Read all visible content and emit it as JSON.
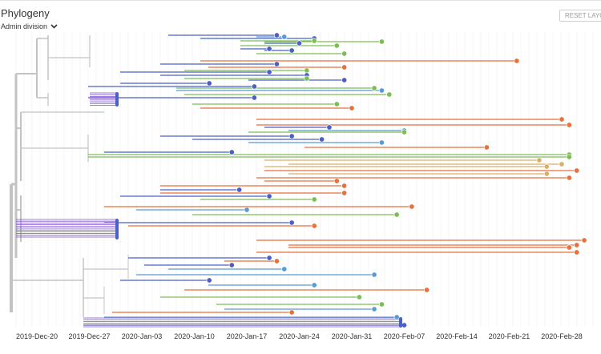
{
  "panel": {
    "title": "Phylogeny",
    "color_by": "Admin division",
    "reset_button": "RESET LAYOUT"
  },
  "colors": {
    "stem": "#c3c3c3",
    "grid": "#ececec",
    "purple": "#7d55c7",
    "blue": "#4a5fc7",
    "lightblue": "#5b9bd5",
    "green": "#7dbd55",
    "orange": "#e8703a",
    "tan": "#dcae6b"
  },
  "icons": {
    "dropdown": "chevron-down-icon"
  },
  "chart_data": {
    "type": "tree",
    "title": "",
    "xlabel": "",
    "ylabel": "",
    "grid": true,
    "x_ticks": [
      "2019-Dec-20",
      "2019-Dec-27",
      "2020-Jan-03",
      "2020-Jan-10",
      "2020-Jan-17",
      "2020-Jan-24",
      "2020-Jan-31",
      "2020-Feb-07",
      "2020-Feb-14",
      "2020-Feb-21",
      "2020-Feb-28"
    ],
    "tips": [
      {
        "date": "2020-Jan-21",
        "color": "blue"
      },
      {
        "date": "2020-Jan-22",
        "color": "lightblue"
      },
      {
        "date": "2020-Jan-26",
        "color": "blue"
      },
      {
        "date": "2020-Jan-26",
        "color": "green"
      },
      {
        "date": "2020-Feb-04",
        "color": "green"
      },
      {
        "date": "2020-Jan-24",
        "color": "blue"
      },
      {
        "date": "2020-Jan-29",
        "color": "green"
      },
      {
        "date": "2020-Jan-20",
        "color": "blue"
      },
      {
        "date": "2020-Jan-23",
        "color": "blue"
      },
      {
        "date": "2020-Jan-30",
        "color": "green"
      },
      {
        "date": "2020-Feb-22",
        "color": "orange"
      },
      {
        "date": "2020-Jan-21",
        "color": "blue"
      },
      {
        "date": "2020-Jan-30",
        "color": "orange"
      },
      {
        "date": "2020-Jan-25",
        "color": "green"
      },
      {
        "date": "2020-Jan-20",
        "color": "blue"
      },
      {
        "date": "2020-Jan-25",
        "color": "blue"
      },
      {
        "date": "2020-Jan-25",
        "color": "green"
      },
      {
        "date": "2020-Jan-30",
        "color": "blue"
      },
      {
        "date": "2020-Jan-12",
        "color": "blue"
      },
      {
        "date": "2020-Jan-18",
        "color": "blue"
      },
      {
        "date": "2020-Feb-03",
        "color": "green"
      },
      {
        "date": "2020-Feb-04",
        "color": "lightblue"
      },
      {
        "date": "2020-Feb-05",
        "color": "green"
      },
      {
        "date": "2020-Jan-18",
        "color": "blue"
      },
      {
        "date": "2020-Jan-29",
        "color": "green"
      },
      {
        "date": "2020-Jan-31",
        "color": "orange"
      },
      {
        "date": "2020-Feb-28",
        "color": "orange"
      },
      {
        "date": "2020-Feb-29",
        "color": "orange"
      },
      {
        "date": "2020-Jan-28",
        "color": "blue"
      },
      {
        "date": "2020-Feb-07",
        "color": "lightblue"
      },
      {
        "date": "2020-Feb-07",
        "color": "green"
      },
      {
        "date": "2020-Jan-23",
        "color": "blue"
      },
      {
        "date": "2020-Jan-27",
        "color": "blue"
      },
      {
        "date": "2020-Feb-04",
        "color": "lightblue"
      },
      {
        "date": "2020-Feb-18",
        "color": "orange"
      },
      {
        "date": "2020-Jan-15",
        "color": "blue"
      },
      {
        "date": "2020-Feb-29",
        "color": "green"
      },
      {
        "date": "2020-Feb-29",
        "color": "green"
      },
      {
        "date": "2020-Feb-25",
        "color": "tan"
      },
      {
        "date": "2020-Feb-28",
        "color": "tan"
      },
      {
        "date": "2020-Feb-26",
        "color": "tan"
      },
      {
        "date": "2020-Mar-01",
        "color": "orange"
      },
      {
        "date": "2020-Feb-26",
        "color": "tan"
      },
      {
        "date": "2020-Feb-29",
        "color": "orange"
      },
      {
        "date": "2020-Jan-29",
        "color": "orange"
      },
      {
        "date": "2020-Jan-30",
        "color": "orange"
      },
      {
        "date": "2020-Jan-16",
        "color": "blue"
      },
      {
        "date": "2020-Jan-30",
        "color": "orange"
      },
      {
        "date": "2020-Jan-20",
        "color": "blue"
      },
      {
        "date": "2020-Jan-26",
        "color": "green"
      },
      {
        "date": "2020-Feb-08",
        "color": "orange"
      },
      {
        "date": "2020-Jan-17",
        "color": "lightblue"
      },
      {
        "date": "2020-Feb-06",
        "color": "green"
      },
      {
        "date": "2020-Jan-23",
        "color": "blue"
      },
      {
        "date": "2020-Jan-26",
        "color": "orange"
      },
      {
        "date": "2020-Mar-02",
        "color": "orange"
      },
      {
        "date": "2020-Mar-01",
        "color": "orange"
      },
      {
        "date": "2020-Feb-29",
        "color": "orange"
      },
      {
        "date": "2020-Mar-01",
        "color": "orange"
      },
      {
        "date": "2020-Jan-20",
        "color": "blue"
      },
      {
        "date": "2020-Jan-21",
        "color": "orange"
      },
      {
        "date": "2020-Jan-15",
        "color": "blue"
      },
      {
        "date": "2020-Jan-22",
        "color": "lightblue"
      },
      {
        "date": "2020-Feb-03",
        "color": "lightblue"
      },
      {
        "date": "2020-Jan-12",
        "color": "blue"
      },
      {
        "date": "2020-Jan-26",
        "color": "lightblue"
      },
      {
        "date": "2020-Feb-10",
        "color": "orange"
      },
      {
        "date": "2020-Feb-01",
        "color": "green"
      },
      {
        "date": "2020-Feb-04",
        "color": "green"
      },
      {
        "date": "2020-Feb-03",
        "color": "lightblue"
      },
      {
        "date": "2020-Jan-23",
        "color": "orange"
      },
      {
        "date": "2020-Feb-06",
        "color": "lightblue"
      },
      {
        "date": "2020-Feb-07",
        "color": "blue"
      }
    ]
  }
}
